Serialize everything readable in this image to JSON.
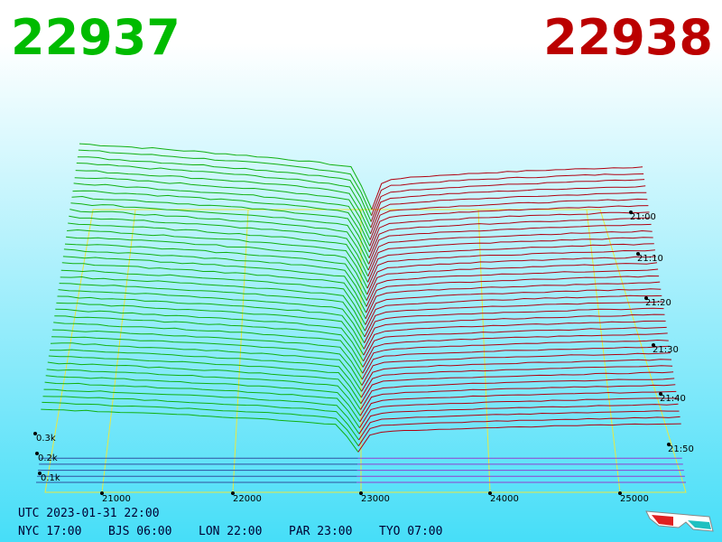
{
  "header": {
    "bid": "22937",
    "ask": "22938"
  },
  "price_axis": {
    "labels": [
      "21000",
      "22000",
      "23000",
      "24000",
      "25000"
    ]
  },
  "volume_axis": {
    "labels": [
      "0.3k",
      "0.2k",
      "0.1k"
    ]
  },
  "time_axis": {
    "labels": [
      "21:00",
      "21:10",
      "21:20",
      "21:30",
      "21:40",
      "21:50"
    ]
  },
  "clock": {
    "utc": "UTC 2023-01-31 22:00",
    "zones": [
      "NYC 17:00",
      "BJS 06:00",
      "LON 22:00",
      "PAR 23:00",
      "TYO 07:00"
    ]
  }
}
